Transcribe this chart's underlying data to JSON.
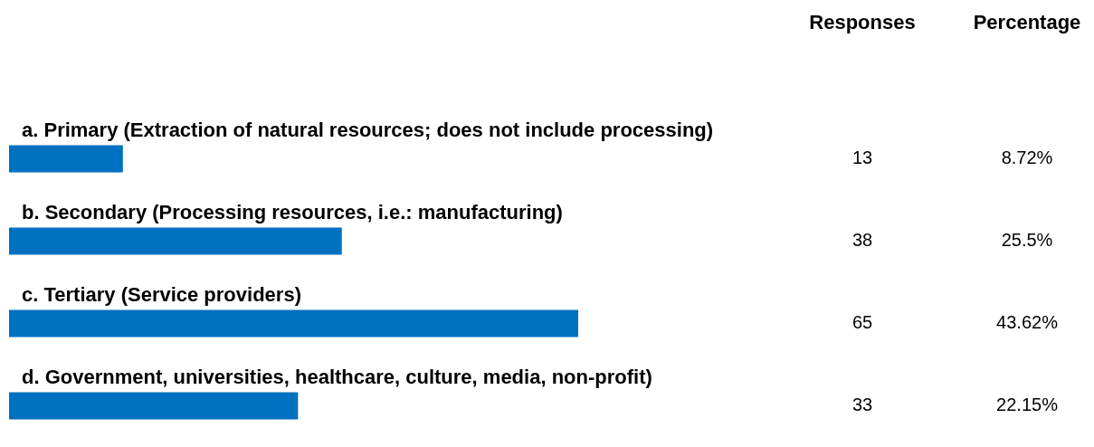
{
  "chart_data": {
    "type": "bar",
    "orientation": "horizontal",
    "categories": [
      "a. Primary (Extraction of natural resources; does not include processing)",
      "b. Secondary (Processing resources, i.e.: manufacturing)",
      "c. Tertiary (Service providers)",
      "d. Government, universities, healthcare, culture, media, non-profit)"
    ],
    "values": [
      13,
      38,
      65,
      33
    ],
    "color": "#0070c0",
    "data_labels": true,
    "tick_labels": false,
    "annotations": [
      "Responses",
      "Percentage",
      "8.72%",
      "25.5%",
      "43.62%",
      "22.15%"
    ]
  }
}
